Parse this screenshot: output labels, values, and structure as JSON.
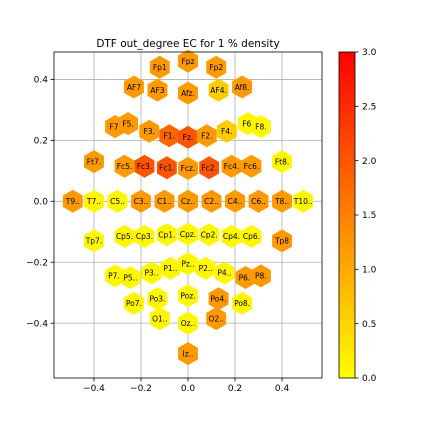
{
  "chart_data": {
    "type": "scatter",
    "title": "DTF out_degree EC for 1 % density",
    "xlabel": "",
    "ylabel": "",
    "xlim": [
      -0.57,
      0.57
    ],
    "ylim": [
      -0.58,
      0.49
    ],
    "xticks": [
      -0.4,
      -0.2,
      0.0,
      0.2,
      0.4
    ],
    "xtick_labels": [
      "−0.4",
      "−0.2",
      "0.0",
      "0.2",
      "0.4"
    ],
    "yticks": [
      -0.4,
      -0.2,
      0.0,
      0.2,
      0.4
    ],
    "ytick_labels": [
      "−0.4",
      "−0.2",
      "0.0",
      "0.2",
      "0.4"
    ],
    "grid": true,
    "marker": "hexagon",
    "colorbar": {
      "min": 0.0,
      "max": 3.0,
      "ticks": [
        0.0,
        0.5,
        1.0,
        1.5,
        2.0,
        2.5,
        3.0
      ],
      "tick_labels": [
        "0.0",
        "0.5",
        "1.0",
        "1.5",
        "2.0",
        "2.5",
        "3.0"
      ],
      "colormap": "autumn_r",
      "colors": [
        "#ffff00",
        "#ff0000"
      ]
    },
    "points": [
      {
        "label": "Fpz",
        "x": 0.0,
        "y": 0.46,
        "value": 1.2
      },
      {
        "label": "Fp1",
        "x": -0.12,
        "y": 0.44,
        "value": 1.2
      },
      {
        "label": "Fp2",
        "x": 0.12,
        "y": 0.44,
        "value": 1.2
      },
      {
        "label": "AF7",
        "x": -0.23,
        "y": 0.375,
        "value": 1.2
      },
      {
        "label": "AF3",
        "x": -0.13,
        "y": 0.365,
        "value": 1.2
      },
      {
        "label": "Afz.",
        "x": 0.0,
        "y": 0.355,
        "value": 1.2
      },
      {
        "label": "AF4.",
        "x": 0.13,
        "y": 0.365,
        "value": 0.6
      },
      {
        "label": "Af8.",
        "x": 0.23,
        "y": 0.375,
        "value": 1.2
      },
      {
        "label": "F7.",
        "x": -0.31,
        "y": 0.245,
        "value": 1.2
      },
      {
        "label": "F5.",
        "x": -0.255,
        "y": 0.255,
        "value": 1.2
      },
      {
        "label": "F3.",
        "x": -0.165,
        "y": 0.23,
        "value": 1.2
      },
      {
        "label": "F1.",
        "x": -0.08,
        "y": 0.215,
        "value": 1.8
      },
      {
        "label": "Fz.",
        "x": 0.0,
        "y": 0.21,
        "value": 2.0
      },
      {
        "label": "F2.",
        "x": 0.08,
        "y": 0.215,
        "value": 1.2
      },
      {
        "label": "F4.",
        "x": 0.165,
        "y": 0.23,
        "value": 0.6
      },
      {
        "label": "F6.",
        "x": 0.255,
        "y": 0.255,
        "value": 0.1
      },
      {
        "label": "F8.",
        "x": 0.31,
        "y": 0.245,
        "value": 0.1
      },
      {
        "label": "Ft7.",
        "x": -0.4,
        "y": 0.13,
        "value": 1.2
      },
      {
        "label": "Fc5.",
        "x": -0.27,
        "y": 0.115,
        "value": 1.2
      },
      {
        "label": "Fc3.",
        "x": -0.185,
        "y": 0.115,
        "value": 2.0
      },
      {
        "label": "Fc1.",
        "x": -0.09,
        "y": 0.11,
        "value": 2.0
      },
      {
        "label": "Fcz.",
        "x": 0.0,
        "y": 0.108,
        "value": 1.2
      },
      {
        "label": "Fc2.",
        "x": 0.09,
        "y": 0.11,
        "value": 2.0
      },
      {
        "label": "Fc4.",
        "x": 0.185,
        "y": 0.115,
        "value": 1.2
      },
      {
        "label": "Fc6.",
        "x": 0.27,
        "y": 0.115,
        "value": 1.2
      },
      {
        "label": "Ft8.",
        "x": 0.4,
        "y": 0.13,
        "value": 0.1
      },
      {
        "label": "T9..",
        "x": -0.49,
        "y": 0.0,
        "value": 1.2
      },
      {
        "label": "T7..",
        "x": -0.4,
        "y": 0.0,
        "value": 0.1
      },
      {
        "label": "C5..",
        "x": -0.3,
        "y": 0.0,
        "value": 0.1
      },
      {
        "label": "C3..",
        "x": -0.2,
        "y": 0.0,
        "value": 1.2
      },
      {
        "label": "C1..",
        "x": -0.1,
        "y": 0.0,
        "value": 1.2
      },
      {
        "label": "Cz..",
        "x": 0.0,
        "y": 0.0,
        "value": 1.2
      },
      {
        "label": "C2..",
        "x": 0.1,
        "y": 0.0,
        "value": 1.2
      },
      {
        "label": "C4..",
        "x": 0.2,
        "y": 0.0,
        "value": 1.2
      },
      {
        "label": "C6..",
        "x": 0.3,
        "y": 0.0,
        "value": 1.2
      },
      {
        "label": "T8..",
        "x": 0.4,
        "y": 0.0,
        "value": 1.2
      },
      {
        "label": "T10..",
        "x": 0.49,
        "y": 0.0,
        "value": 0.1
      },
      {
        "label": "Tp7.",
        "x": -0.4,
        "y": -0.13,
        "value": 0.1
      },
      {
        "label": "Cp5.",
        "x": -0.27,
        "y": -0.115,
        "value": 0.1
      },
      {
        "label": "Cp3.",
        "x": -0.185,
        "y": -0.115,
        "value": 0.1
      },
      {
        "label": "Cp1.",
        "x": -0.09,
        "y": -0.11,
        "value": 0.1
      },
      {
        "label": "Cpz.",
        "x": 0.0,
        "y": -0.108,
        "value": 0.1
      },
      {
        "label": "Cp2.",
        "x": 0.09,
        "y": -0.11,
        "value": 0.1
      },
      {
        "label": "Cp4.",
        "x": 0.185,
        "y": -0.115,
        "value": 0.1
      },
      {
        "label": "Cp6.",
        "x": 0.27,
        "y": -0.115,
        "value": 0.1
      },
      {
        "label": "Tp8",
        "x": 0.4,
        "y": -0.13,
        "value": 1.2
      },
      {
        "label": "P7..",
        "x": -0.31,
        "y": -0.245,
        "value": 0.1
      },
      {
        "label": "P5..",
        "x": -0.245,
        "y": -0.25,
        "value": 0.1
      },
      {
        "label": "P3..",
        "x": -0.155,
        "y": -0.235,
        "value": 0.1
      },
      {
        "label": "P1..",
        "x": -0.075,
        "y": -0.22,
        "value": 0.1
      },
      {
        "label": "Pz..",
        "x": 0.0,
        "y": -0.205,
        "value": 0.1
      },
      {
        "label": "P2..",
        "x": 0.075,
        "y": -0.22,
        "value": 0.1
      },
      {
        "label": "P4..",
        "x": 0.155,
        "y": -0.235,
        "value": 0.1
      },
      {
        "label": "P6..",
        "x": 0.245,
        "y": -0.25,
        "value": 1.2
      },
      {
        "label": "P8.",
        "x": 0.31,
        "y": -0.245,
        "value": 1.2
      },
      {
        "label": "Po7.",
        "x": -0.23,
        "y": -0.335,
        "value": 0.1
      },
      {
        "label": "Po3.",
        "x": -0.13,
        "y": -0.32,
        "value": 0.1
      },
      {
        "label": "Poz.",
        "x": 0.0,
        "y": -0.31,
        "value": 0.1
      },
      {
        "label": "Po4.",
        "x": 0.13,
        "y": -0.32,
        "value": 1.2
      },
      {
        "label": "Po8.",
        "x": 0.23,
        "y": -0.335,
        "value": 0.1
      },
      {
        "label": "O1..",
        "x": -0.12,
        "y": -0.385,
        "value": 0.1
      },
      {
        "label": "Oz..",
        "x": 0.0,
        "y": -0.4,
        "value": 0.1
      },
      {
        "label": "O2..",
        "x": 0.12,
        "y": -0.385,
        "value": 1.2
      },
      {
        "label": "Iz..",
        "x": 0.0,
        "y": -0.5,
        "value": 1.2
      }
    ]
  }
}
